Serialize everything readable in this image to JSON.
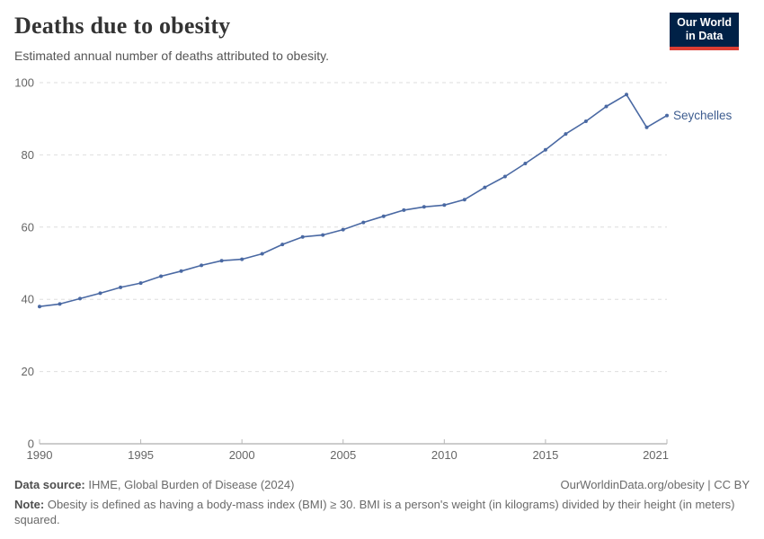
{
  "header": {
    "title": "Deaths due to obesity",
    "subtitle": "Estimated annual number of deaths attributed to obesity.",
    "logo": {
      "line1": "Our World",
      "line2": "in Data"
    }
  },
  "footer": {
    "data_source_label": "Data source: ",
    "data_source_text": "IHME, Global Burden of Disease (2024)",
    "attribution": "OurWorldinData.org/obesity | CC BY",
    "note_label": "Note: ",
    "note_text": "Obesity is defined as having a body-mass index (BMI) ≥ 30. BMI is a person's weight (in kilograms) divided by their height (in meters) squared."
  },
  "colors": {
    "line": "#4a69a3",
    "entity_label": "#3d5c8f",
    "grid": "#dedede",
    "axis": "#999999",
    "tick": "#b8b8b8",
    "tick_label": "#666666",
    "logo_bg": "#002147",
    "logo_accent": "#dc3d33"
  },
  "chart_data": {
    "type": "line",
    "title": "Deaths due to obesity",
    "subtitle": "Estimated annual number of deaths attributed to obesity.",
    "xlabel": "",
    "ylabel": "",
    "xlim": [
      1990,
      2021
    ],
    "ylim": [
      0,
      100
    ],
    "x_ticks": [
      1990,
      1995,
      2000,
      2005,
      2010,
      2015,
      2021
    ],
    "y_ticks": [
      0,
      20,
      40,
      60,
      80,
      100
    ],
    "grid": "horizontal-dashed",
    "legend_position": "end-of-line-label",
    "series": [
      {
        "name": "Seychelles",
        "x": [
          1990,
          1991,
          1992,
          1993,
          1994,
          1995,
          1996,
          1997,
          1998,
          1999,
          2000,
          2001,
          2002,
          2003,
          2004,
          2005,
          2006,
          2007,
          2008,
          2009,
          2010,
          2011,
          2012,
          2013,
          2014,
          2015,
          2016,
          2017,
          2018,
          2019,
          2020,
          2021
        ],
        "values": [
          38,
          38.7,
          40.2,
          41.7,
          43.3,
          44.5,
          46.4,
          47.8,
          49.4,
          50.7,
          51.1,
          52.6,
          55.2,
          57.3,
          57.8,
          59.3,
          61.3,
          63,
          64.7,
          65.6,
          66.1,
          67.6,
          71,
          74,
          77.6,
          81.4,
          85.8,
          89.3,
          93.4,
          96.7,
          87.6,
          90.9
        ]
      }
    ]
  }
}
